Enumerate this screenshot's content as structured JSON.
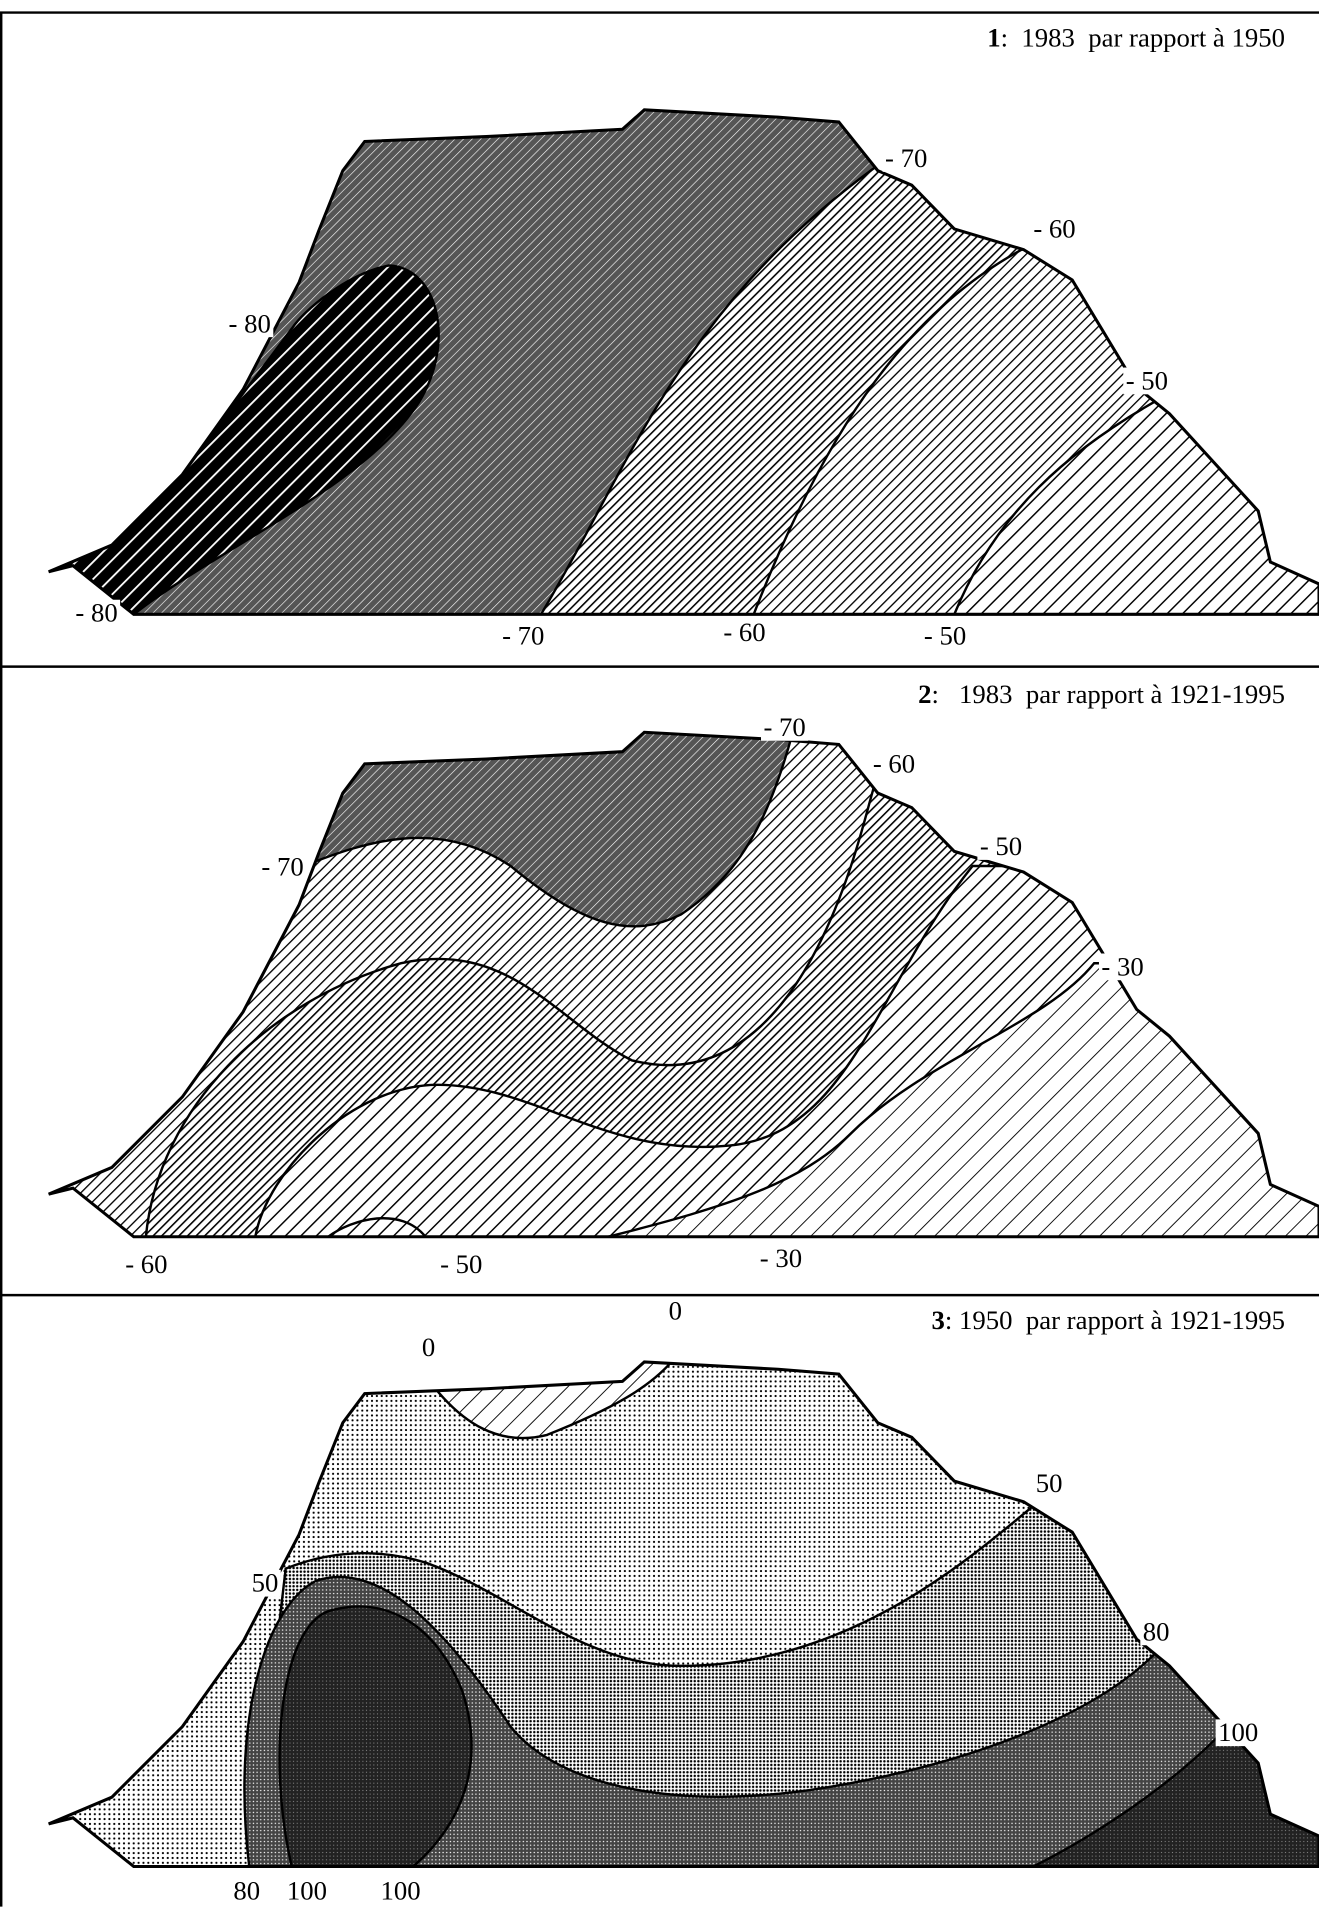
{
  "panels": [
    {
      "number": "1",
      "title": ":  1983  par rapport à 1950",
      "labels": [
        "- 70",
        "- 60",
        "- 80",
        "- 50",
        "- 80",
        "- 70",
        "- 60",
        "- 50"
      ]
    },
    {
      "number": "2",
      "title": ":   1983  par rapport à 1921-1995",
      "labels": [
        "- 70",
        "- 60",
        "- 70",
        "- 50",
        "- 30",
        "- 60",
        "- 50",
        "- 30"
      ]
    },
    {
      "number": "3",
      "title": ": 1950  par rapport à 1921-1995",
      "labels": [
        "0",
        "0",
        "50",
        "50",
        "80",
        "100",
        "80",
        "100",
        "100"
      ]
    }
  ]
}
